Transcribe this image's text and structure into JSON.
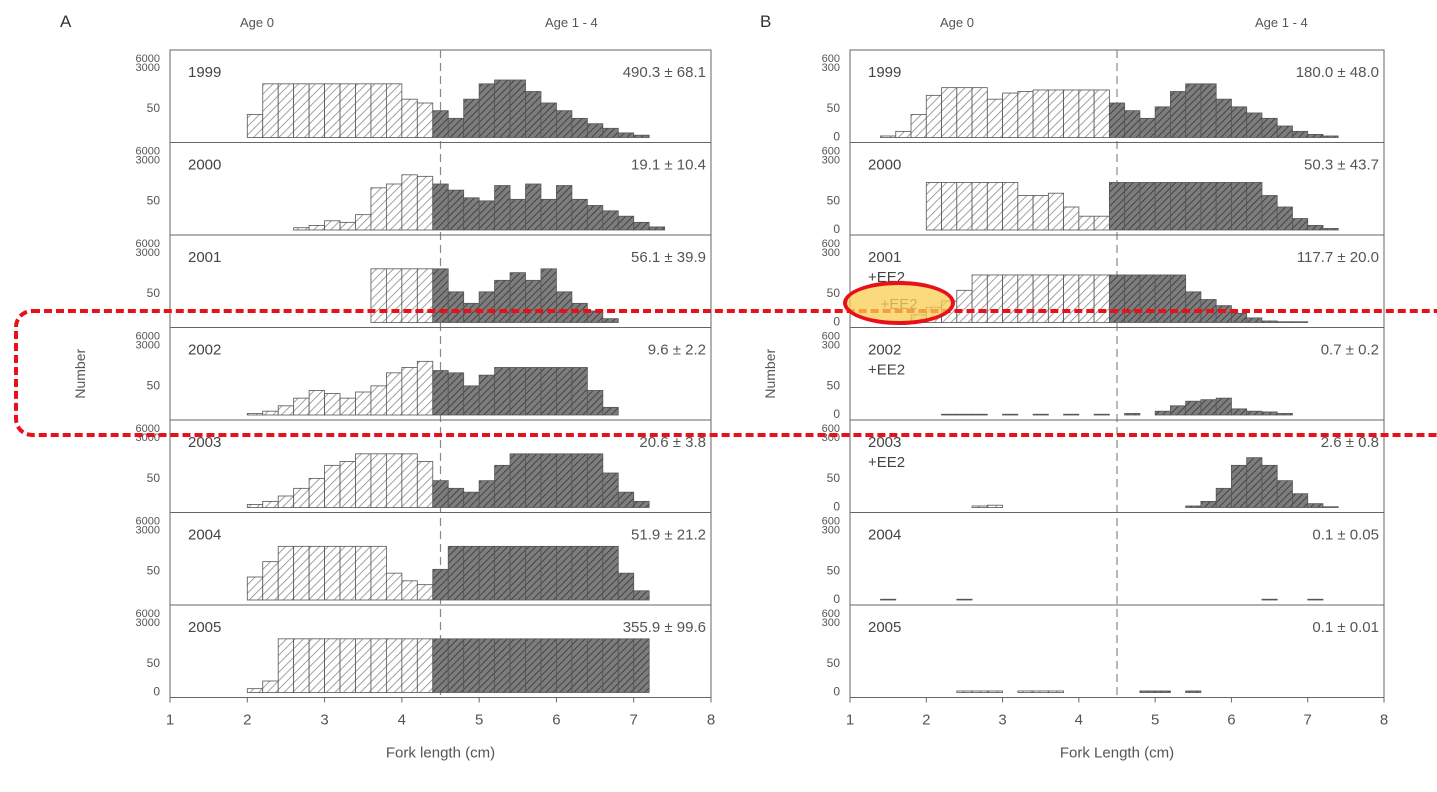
{
  "chart_data": [
    {
      "type": "bar",
      "panel_label": "A",
      "header_left": "Age 0",
      "header_right": "Age 1 - 4",
      "xlabel": "Fork length (cm)",
      "ylabel": "Number",
      "xlim": [
        1,
        8
      ],
      "x_ticks": [
        1,
        2,
        3,
        4,
        5,
        6,
        7,
        8
      ],
      "y_tick_labels": [
        "6000",
        "3000",
        "50",
        "0"
      ],
      "age_split": 4.5,
      "bin_width": 0.2,
      "subpanels": [
        {
          "year": "1999",
          "treatment": "",
          "estimate": "490.3 ± 68.1",
          "bins_x": [
            2.1,
            2.3,
            2.5,
            2.7,
            2.9,
            3.1,
            3.3,
            3.5,
            3.7,
            3.9,
            4.1,
            4.3,
            4.5,
            4.7,
            4.9,
            5.1,
            5.3,
            5.5,
            5.7,
            5.9,
            6.1,
            6.3,
            6.5,
            6.7,
            6.9,
            7.1
          ],
          "values": [
            30,
            70,
            70,
            70,
            70,
            70,
            70,
            70,
            70,
            70,
            50,
            45,
            35,
            25,
            50,
            70,
            75,
            75,
            60,
            45,
            35,
            25,
            18,
            12,
            6,
            3
          ]
        },
        {
          "year": "2000",
          "treatment": "",
          "estimate": "19.1 ± 10.4",
          "bins_x": [
            2.7,
            2.9,
            3.1,
            3.3,
            3.5,
            3.7,
            3.9,
            4.1,
            4.3,
            4.5,
            4.7,
            4.9,
            5.1,
            5.3,
            5.5,
            5.7,
            5.9,
            6.1,
            6.3,
            6.5,
            6.7,
            6.9,
            7.1,
            7.3
          ],
          "values": [
            3,
            6,
            12,
            10,
            20,
            55,
            60,
            72,
            70,
            60,
            52,
            42,
            38,
            58,
            40,
            60,
            40,
            58,
            40,
            32,
            25,
            18,
            10,
            4
          ]
        },
        {
          "year": "2001",
          "treatment": "",
          "estimate": "56.1 ± 39.9",
          "bins_x": [
            3.7,
            3.9,
            4.1,
            4.3,
            4.5,
            4.7,
            4.9,
            5.1,
            5.3,
            5.5,
            5.7,
            5.9,
            6.1,
            6.3,
            6.5,
            6.7
          ],
          "values": [
            70,
            70,
            70,
            70,
            70,
            40,
            25,
            40,
            55,
            65,
            55,
            70,
            40,
            25,
            15,
            5
          ]
        },
        {
          "year": "2002",
          "treatment": "",
          "estimate": "9.6 ± 2.2",
          "bins_x": [
            2.1,
            2.3,
            2.5,
            2.7,
            2.9,
            3.1,
            3.3,
            3.5,
            3.7,
            3.9,
            4.1,
            4.3,
            4.5,
            4.7,
            4.9,
            5.1,
            5.3,
            5.5,
            5.7,
            5.9,
            6.1,
            6.3,
            6.5,
            6.7
          ],
          "values": [
            2,
            5,
            12,
            22,
            32,
            28,
            22,
            30,
            38,
            55,
            62,
            70,
            58,
            55,
            38,
            52,
            62,
            62,
            62,
            62,
            62,
            62,
            32,
            10
          ]
        },
        {
          "year": "2003",
          "treatment": "",
          "estimate": "20.6 ± 3.8",
          "bins_x": [
            2.1,
            2.3,
            2.5,
            2.7,
            2.9,
            3.1,
            3.3,
            3.5,
            3.7,
            3.9,
            4.1,
            4.3,
            4.5,
            4.7,
            4.9,
            5.1,
            5.3,
            5.5,
            5.7,
            5.9,
            6.1,
            6.3,
            6.5,
            6.7,
            6.9,
            7.1
          ],
          "values": [
            4,
            8,
            15,
            25,
            38,
            55,
            60,
            70,
            70,
            70,
            70,
            60,
            35,
            25,
            20,
            35,
            55,
            70,
            70,
            70,
            70,
            70,
            70,
            45,
            20,
            8
          ]
        },
        {
          "year": "2004",
          "treatment": "",
          "estimate": "51.9 ± 21.2",
          "bins_x": [
            2.1,
            2.3,
            2.5,
            2.7,
            2.9,
            3.1,
            3.3,
            3.5,
            3.7,
            3.9,
            4.1,
            4.3,
            4.5,
            4.7,
            4.9,
            5.1,
            5.3,
            5.5,
            5.7,
            5.9,
            6.1,
            6.3,
            6.5,
            6.7,
            6.9,
            7.1
          ],
          "values": [
            30,
            50,
            70,
            70,
            70,
            70,
            70,
            70,
            70,
            35,
            25,
            20,
            40,
            70,
            70,
            70,
            70,
            70,
            70,
            70,
            70,
            70,
            70,
            70,
            35,
            12
          ]
        },
        {
          "year": "2005",
          "treatment": "",
          "estimate": "355.9 ± 99.6",
          "bins_x": [
            2.1,
            2.3,
            2.5,
            2.7,
            2.9,
            3.1,
            3.3,
            3.5,
            3.7,
            3.9,
            4.1,
            4.3,
            4.5,
            4.7,
            4.9,
            5.1,
            5.3,
            5.5,
            5.7,
            5.9,
            6.1,
            6.3,
            6.5,
            6.7,
            6.9,
            7.1
          ],
          "values": [
            5,
            15,
            70,
            70,
            70,
            70,
            70,
            70,
            70,
            70,
            70,
            70,
            70,
            70,
            70,
            70,
            70,
            70,
            70,
            70,
            70,
            70,
            70,
            70,
            70,
            70
          ]
        }
      ]
    },
    {
      "type": "bar",
      "panel_label": "B",
      "header_left": "Age 0",
      "header_right": "Age 1 - 4",
      "xlabel": "Fork Length (cm)",
      "ylabel": "Number",
      "xlim": [
        1,
        8
      ],
      "x_ticks": [
        1,
        2,
        3,
        4,
        5,
        6,
        7,
        8
      ],
      "y_tick_labels": [
        "600",
        "300",
        "50",
        "0"
      ],
      "age_split": 4.5,
      "bin_width": 0.2,
      "subpanels": [
        {
          "year": "1999",
          "treatment": "",
          "estimate": "180.0 ± 48.0",
          "bins_x": [
            1.5,
            1.7,
            1.9,
            2.1,
            2.3,
            2.5,
            2.7,
            2.9,
            3.1,
            3.3,
            3.5,
            3.7,
            3.9,
            4.1,
            4.3,
            4.5,
            4.7,
            4.9,
            5.1,
            5.3,
            5.5,
            5.7,
            5.9,
            6.1,
            6.3,
            6.5,
            6.7,
            6.9,
            7.1,
            7.3
          ],
          "values": [
            2,
            8,
            30,
            55,
            65,
            65,
            65,
            50,
            58,
            60,
            62,
            62,
            62,
            62,
            62,
            45,
            35,
            25,
            40,
            60,
            70,
            70,
            50,
            40,
            32,
            25,
            15,
            8,
            4,
            2
          ]
        },
        {
          "year": "2000",
          "treatment": "",
          "estimate": "50.3 ± 43.7",
          "bins_x": [
            2.1,
            2.3,
            2.5,
            2.7,
            2.9,
            3.1,
            3.3,
            3.5,
            3.7,
            3.9,
            4.1,
            4.3,
            4.5,
            4.7,
            4.9,
            5.1,
            5.3,
            5.5,
            5.7,
            5.9,
            6.1,
            6.3,
            6.5,
            6.7,
            6.9,
            7.1,
            7.3
          ],
          "values": [
            62,
            62,
            62,
            62,
            62,
            62,
            45,
            45,
            48,
            30,
            18,
            18,
            62,
            62,
            62,
            62,
            62,
            62,
            62,
            62,
            62,
            62,
            45,
            30,
            15,
            6,
            2
          ]
        },
        {
          "year": "2001",
          "treatment": "+EE2",
          "estimate": "117.7 ± 20.0",
          "bins_x": [
            1.9,
            2.1,
            2.3,
            2.5,
            2.7,
            2.9,
            3.1,
            3.3,
            3.5,
            3.7,
            3.9,
            4.1,
            4.3,
            4.5,
            4.7,
            4.9,
            5.1,
            5.3,
            5.5,
            5.7,
            5.9,
            6.1,
            6.3,
            6.5,
            6.7,
            6.9
          ],
          "values": [
            10,
            20,
            28,
            42,
            62,
            62,
            62,
            62,
            62,
            62,
            62,
            62,
            62,
            62,
            62,
            62,
            62,
            62,
            40,
            30,
            22,
            12,
            6,
            2,
            1,
            1
          ]
        },
        {
          "year": "2002",
          "treatment": "+EE2",
          "estimate": "0.7 ± 0.2",
          "bins_x": [
            2.3,
            2.5,
            2.7,
            3.1,
            3.5,
            3.9,
            4.3,
            4.7,
            5.1,
            5.3,
            5.5,
            5.7,
            5.9,
            6.1,
            6.3,
            6.5,
            6.7
          ],
          "values": [
            1,
            1,
            1,
            1,
            1,
            1,
            1,
            2,
            5,
            12,
            18,
            20,
            22,
            8,
            5,
            4,
            2
          ]
        },
        {
          "year": "2003",
          "treatment": "+EE2",
          "estimate": "2.6 ± 0.8",
          "bins_x": [
            2.7,
            2.9,
            5.5,
            5.7,
            5.9,
            6.1,
            6.3,
            6.5,
            6.7,
            6.9,
            7.1,
            7.3
          ],
          "values": [
            2,
            3,
            2,
            8,
            25,
            55,
            65,
            55,
            35,
            18,
            5,
            1
          ]
        },
        {
          "year": "2004",
          "treatment": "",
          "estimate": "0.1 ± 0.05",
          "bins_x": [
            1.5,
            2.5,
            6.5,
            7.1
          ],
          "values": [
            1,
            1,
            1,
            1
          ]
        },
        {
          "year": "2005",
          "treatment": "",
          "estimate": "0.1 ± 0.01",
          "bins_x": [
            2.5,
            2.7,
            2.9,
            3.3,
            3.5,
            3.7,
            4.9,
            5.1,
            5.5
          ],
          "values": [
            2,
            2,
            2,
            2,
            2,
            2,
            2,
            2,
            2
          ]
        }
      ]
    }
  ],
  "annotations": {
    "highlight_label": "+EE2",
    "accent_color": "#e8101a",
    "highlight_fill": "#f8cd50"
  }
}
